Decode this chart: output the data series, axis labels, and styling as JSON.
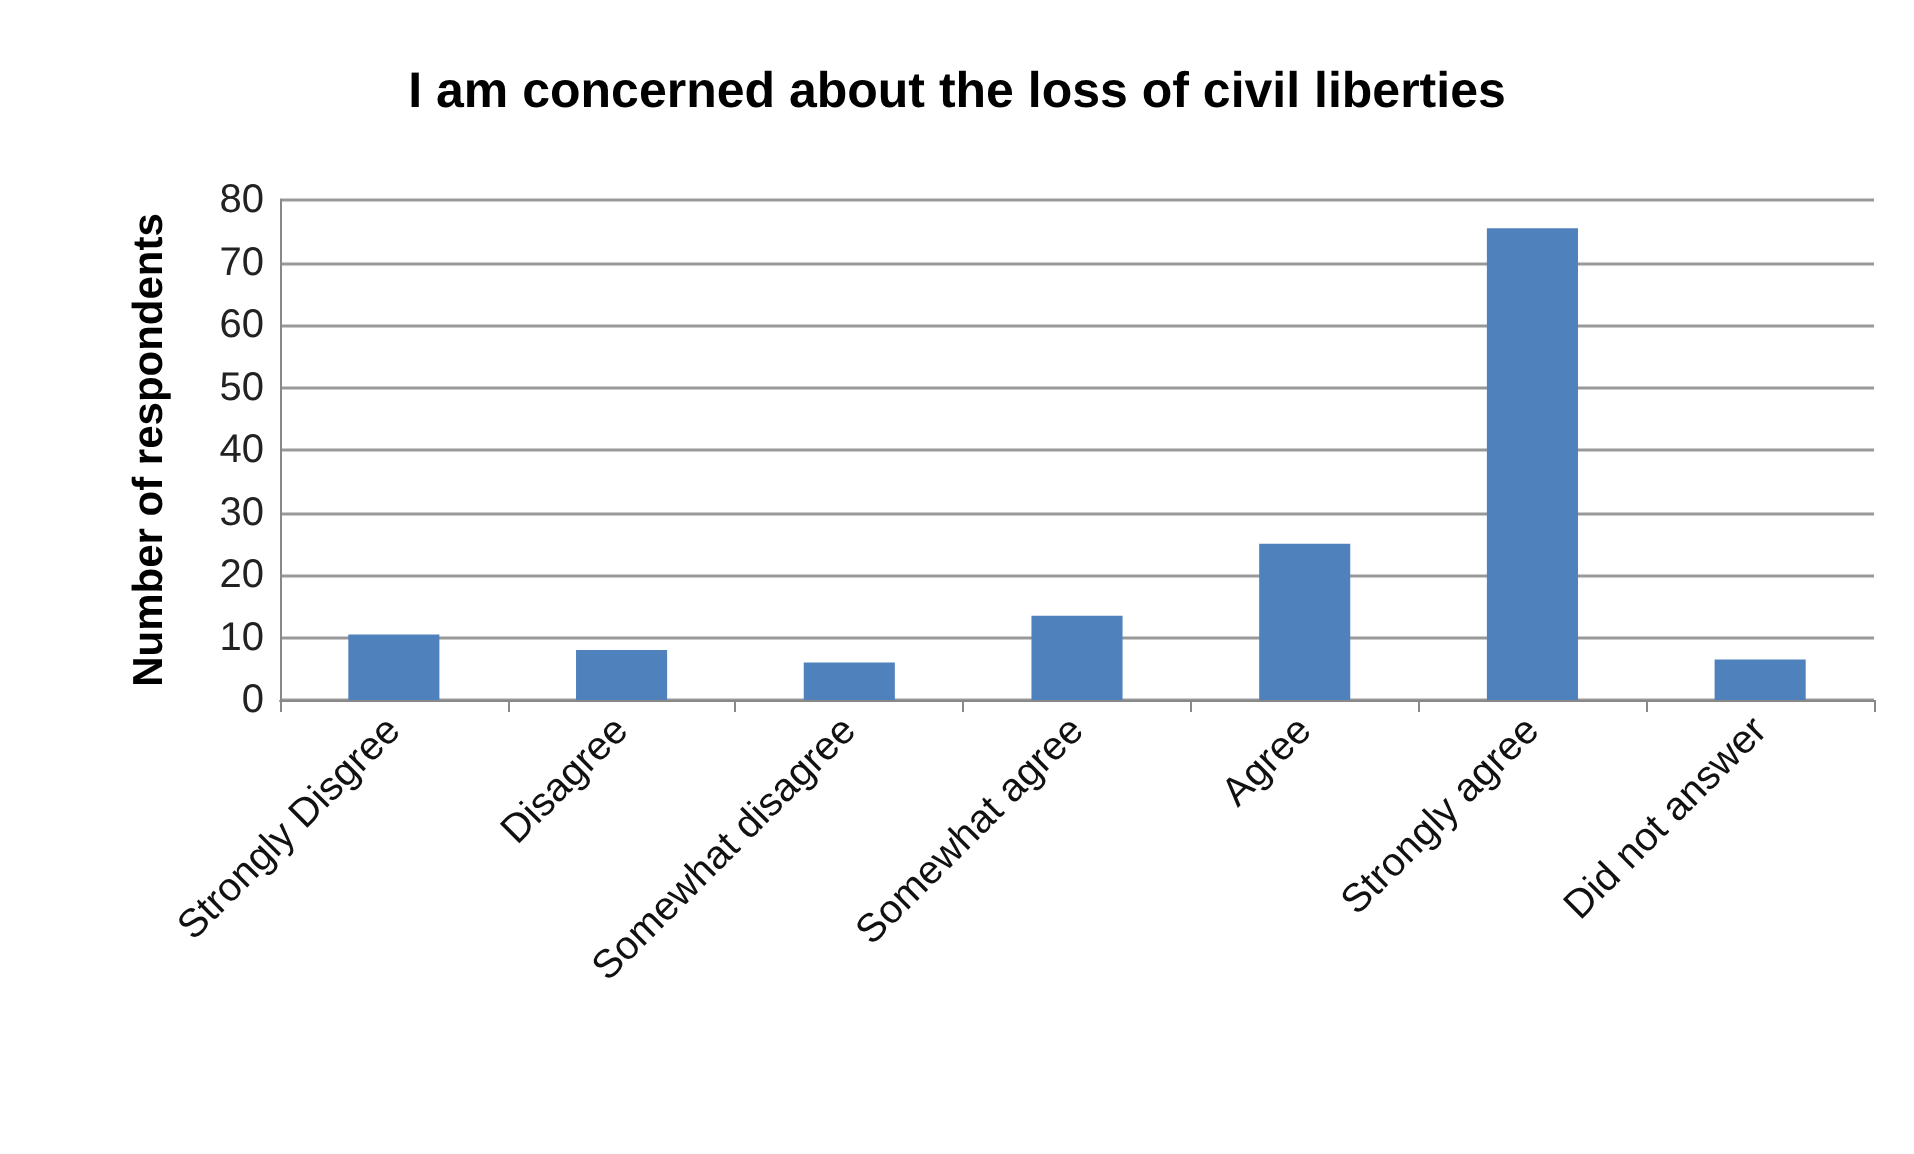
{
  "chart_data": {
    "type": "bar",
    "title": "I am concerned about the loss of civil liberties",
    "ylabel": "Number of respondents",
    "categories": [
      "Strongly Disgree",
      "Disagree",
      "Somewhat disagree",
      "Somewhat agree",
      "Agree",
      "Strongly agree",
      "Did not answer"
    ],
    "values": [
      10.5,
      8,
      6,
      13.5,
      25,
      75.5,
      6.5
    ],
    "color": "#4f81bd",
    "ylim": [
      0,
      80
    ],
    "yticks": [
      0,
      10,
      20,
      30,
      40,
      50,
      60,
      70,
      80
    ],
    "grid": "y"
  }
}
